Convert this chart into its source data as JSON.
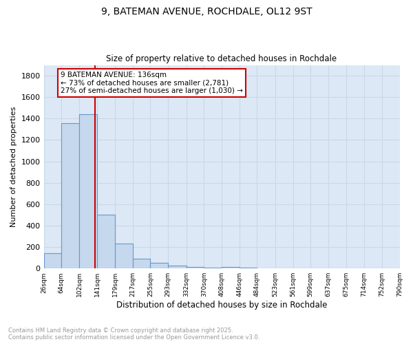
{
  "title_line1": "9, BATEMAN AVENUE, ROCHDALE, OL12 9ST",
  "title_line2": "Size of property relative to detached houses in Rochdale",
  "xlabel": "Distribution of detached houses by size in Rochdale",
  "ylabel": "Number of detached properties",
  "bg_color": "#dce8f5",
  "fig_color": "#ffffff",
  "bar_color": "#c5d8ed",
  "bar_edge_color": "#6699cc",
  "grid_color": "#c8d8e8",
  "bin_edges": [
    26,
    64,
    102,
    141,
    179,
    217,
    255,
    293,
    332,
    370,
    408,
    446,
    484,
    523,
    561,
    599,
    637,
    675,
    714,
    752,
    790
  ],
  "bin_labels": [
    "26sqm",
    "64sqm",
    "102sqm",
    "141sqm",
    "179sqm",
    "217sqm",
    "255sqm",
    "293sqm",
    "332sqm",
    "370sqm",
    "408sqm",
    "446sqm",
    "484sqm",
    "523sqm",
    "561sqm",
    "599sqm",
    "637sqm",
    "675sqm",
    "714sqm",
    "752sqm",
    "790sqm"
  ],
  "bar_heights": [
    140,
    1360,
    1440,
    500,
    230,
    90,
    50,
    30,
    15,
    5,
    15,
    5,
    0,
    0,
    0,
    0,
    0,
    0,
    0,
    0
  ],
  "ylim": [
    0,
    1900
  ],
  "yticks": [
    0,
    200,
    400,
    600,
    800,
    1000,
    1200,
    1400,
    1600,
    1800
  ],
  "vline_x": 136,
  "vline_color": "#cc0000",
  "annotation_text": "9 BATEMAN AVENUE: 136sqm\n← 73% of detached houses are smaller (2,781)\n27% of semi-detached houses are larger (1,030) →",
  "annotation_box_color": "#ffffff",
  "annotation_box_edge": "#cc0000",
  "footnote": "Contains HM Land Registry data © Crown copyright and database right 2025.\nContains public sector information licensed under the Open Government Licence v3.0.",
  "footnote_color": "#999999"
}
